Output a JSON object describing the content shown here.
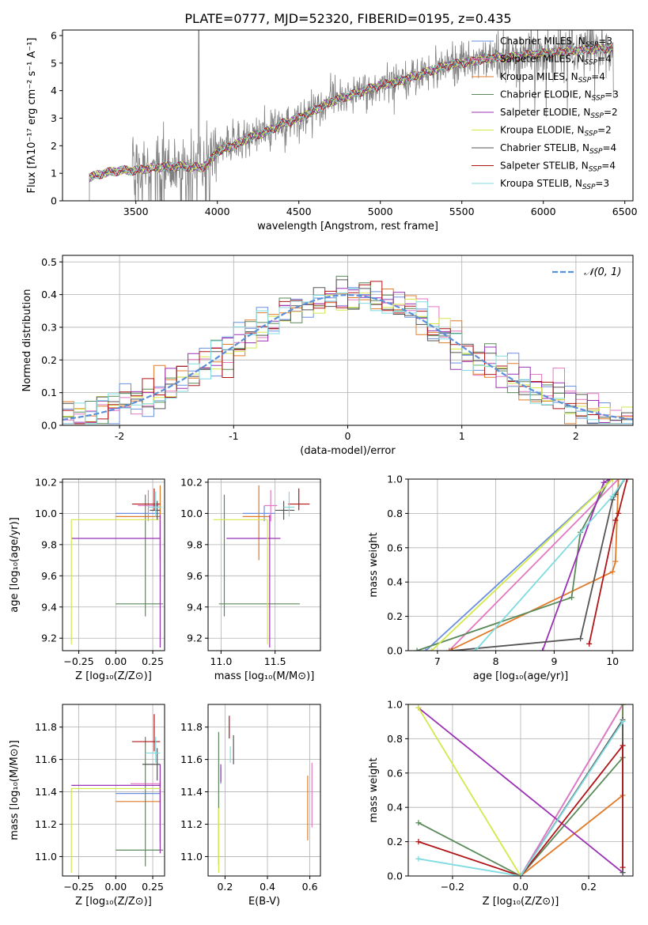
{
  "figure_title": "PLATE=0777, MJD=52320, FIBERID=0195, z=0.435",
  "colors": {
    "Chabrier MILES": "#6a8fe0",
    "Salpeter MILES": "#e377c2",
    "Kroupa MILES": "#e07b2a",
    "Chabrier ELODIE": "#5a8a5a",
    "Salpeter ELODIE": "#9b30b5",
    "Kroupa ELODIE": "#d4e84a",
    "Chabrier STELIB": "#555555",
    "Salpeter STELIB": "#b01518",
    "Kroupa STELIB": "#7fdbe0",
    "data": "#808080",
    "normal": "#5b8fd8"
  },
  "chart_data": [
    {
      "id": "spectrum",
      "type": "line",
      "title": "PLATE=0777, MJD=52320, FIBERID=0195, z=0.435",
      "xlabel": "wavelength [Angstrom, rest frame]",
      "ylabel": "Flux [fλ10⁻¹⁷ erg cm⁻² s⁻¹ A⁻¹]",
      "xlim": [
        3050,
        6550
      ],
      "ylim": [
        0,
        6.2
      ],
      "xticks": [
        3500,
        4000,
        4500,
        5000,
        5500,
        6000,
        6500
      ],
      "yticks": [
        0,
        1,
        2,
        3,
        4,
        5,
        6
      ],
      "legend_position": "top-right",
      "legend": [
        {
          "label": "Chabrier MILES, N",
          "sub": "SSP",
          "eq": "=3",
          "model": "Chabrier MILES"
        },
        {
          "label": "Salpeter MILES, N",
          "sub": "SSP",
          "eq": "=4",
          "model": "Salpeter MILES"
        },
        {
          "label": "Kroupa MILES, N",
          "sub": "SSP",
          "eq": "=4",
          "model": "Kroupa MILES"
        },
        {
          "label": "Chabrier ELODIE, N",
          "sub": "SSP",
          "eq": "=3",
          "model": "Chabrier ELODIE"
        },
        {
          "label": "Salpeter ELODIE, N",
          "sub": "SSP",
          "eq": "=2",
          "model": "Salpeter ELODIE"
        },
        {
          "label": "Kroupa ELODIE, N",
          "sub": "SSP",
          "eq": "=2",
          "model": "Kroupa ELODIE"
        },
        {
          "label": "Chabrier STELIB, N",
          "sub": "SSP",
          "eq": "=4",
          "model": "Chabrier STELIB"
        },
        {
          "label": "Salpeter STELIB, N",
          "sub": "SSP",
          "eq": "=4",
          "model": "Salpeter STELIB"
        },
        {
          "label": "Kroupa STELIB, N",
          "sub": "SSP",
          "eq": "=3",
          "model": "Kroupa STELIB"
        }
      ],
      "continuum": [
        [
          3215,
          0.85
        ],
        [
          3300,
          1.0
        ],
        [
          3400,
          1.1
        ],
        [
          3500,
          1.1
        ],
        [
          3600,
          1.2
        ],
        [
          3700,
          1.25
        ],
        [
          3800,
          1.25
        ],
        [
          3900,
          1.2
        ],
        [
          3950,
          1.4
        ],
        [
          4000,
          1.8
        ],
        [
          4100,
          2.0
        ],
        [
          4200,
          2.3
        ],
        [
          4300,
          2.5
        ],
        [
          4400,
          2.8
        ],
        [
          4500,
          3.0
        ],
        [
          4600,
          3.3
        ],
        [
          4700,
          3.6
        ],
        [
          4800,
          3.8
        ],
        [
          4900,
          4.0
        ],
        [
          5000,
          4.2
        ],
        [
          5100,
          4.3
        ],
        [
          5200,
          4.5
        ],
        [
          5300,
          4.7
        ],
        [
          5400,
          4.9
        ],
        [
          5500,
          5.0
        ],
        [
          5600,
          5.1
        ],
        [
          5700,
          5.2
        ],
        [
          5800,
          5.2
        ],
        [
          5900,
          5.3
        ],
        [
          6000,
          5.35
        ],
        [
          6100,
          5.4
        ],
        [
          6200,
          5.45
        ],
        [
          6300,
          5.5
        ],
        [
          6430,
          5.55
        ]
      ],
      "data_range": [
        3215,
        6430
      ],
      "model_range": [
        3215,
        6430
      ]
    },
    {
      "id": "residual-histogram",
      "type": "line",
      "xlabel": "(data-model)/error",
      "ylabel": "Normed distribution",
      "xlim": [
        -2.5,
        2.5
      ],
      "ylim": [
        0,
        0.52
      ],
      "xticks": [
        -2,
        -1,
        0,
        1,
        2
      ],
      "yticks": [
        0.0,
        0.1,
        0.2,
        0.3,
        0.4,
        0.5
      ],
      "legend_position": "top-right",
      "legend": [
        {
          "label": "𝒩(0, 1)",
          "model": "normal"
        }
      ],
      "bin_width": 0.1
    },
    {
      "id": "age-vs-Z",
      "type": "scatter",
      "xlabel": "Z [log₁₀(Z/Z⊙)]",
      "ylabel": "age  [log₁₀(age/yr)]",
      "xlim": [
        -0.36,
        0.33
      ],
      "ylim": [
        9.12,
        10.22
      ],
      "xticks": [
        -0.25,
        0.0,
        0.25
      ],
      "xticklabels": [
        "−0.25",
        "0.00",
        "0.25"
      ],
      "yticks": [
        9.2,
        9.4,
        9.6,
        9.8,
        10.0,
        10.2
      ],
      "points": [
        {
          "model": "Chabrier MILES",
          "x": 0.3,
          "y": 10.0,
          "xerr": [
            0.3,
            0.0
          ],
          "yerr": [
            0.05,
            0.05
          ]
        },
        {
          "model": "Salpeter MILES",
          "x": 0.22,
          "y": 10.05,
          "xerr": [
            0.07,
            0.07
          ],
          "yerr": [
            0.1,
            0.1
          ]
        },
        {
          "model": "Kroupa MILES",
          "x": 0.3,
          "y": 9.98,
          "xerr": [
            0.3,
            0.0
          ],
          "yerr": [
            0.28,
            0.2
          ]
        },
        {
          "model": "Chabrier ELODIE",
          "x": 0.2,
          "y": 9.42,
          "xerr": [
            0.2,
            0.12
          ],
          "yerr": [
            0.08,
            0.7
          ]
        },
        {
          "model": "Salpeter ELODIE",
          "x": 0.3,
          "y": 9.84,
          "xerr": [
            0.6,
            0.0
          ],
          "yerr": [
            0.7,
            0.15
          ]
        },
        {
          "model": "Kroupa ELODIE",
          "x": -0.3,
          "y": 9.96,
          "xerr": [
            0.0,
            0.6
          ],
          "yerr": [
            0.8,
            0.0
          ]
        },
        {
          "model": "Chabrier STELIB",
          "x": 0.28,
          "y": 10.02,
          "xerr": [
            0.05,
            0.02
          ],
          "yerr": [
            0.06,
            0.06
          ]
        },
        {
          "model": "Salpeter STELIB",
          "x": 0.26,
          "y": 10.06,
          "xerr": [
            0.15,
            0.04
          ],
          "yerr": [
            0.04,
            0.1
          ]
        },
        {
          "model": "Kroupa STELIB",
          "x": 0.27,
          "y": 10.04,
          "xerr": [
            0.05,
            0.04
          ],
          "yerr": [
            0.06,
            0.1
          ]
        }
      ]
    },
    {
      "id": "age-vs-mass",
      "type": "scatter",
      "xlabel": "mass [log₁₀(M/M⊙)]",
      "xlim": [
        10.88,
        11.92
      ],
      "ylim": [
        9.12,
        10.22
      ],
      "xticks": [
        11.0,
        11.5
      ],
      "xticklabels": [
        "11.0",
        "11.5"
      ],
      "yticks": [
        9.2,
        9.4,
        9.6,
        9.8,
        10.0,
        10.2
      ],
      "points": [
        {
          "model": "Chabrier MILES",
          "x": 11.4,
          "y": 10.0,
          "xerr": [
            0.2,
            0.1
          ],
          "yerr": [
            0.05,
            0.05
          ]
        },
        {
          "model": "Salpeter MILES",
          "x": 11.46,
          "y": 10.05,
          "xerr": [
            0.06,
            0.06
          ],
          "yerr": [
            0.1,
            0.1
          ]
        },
        {
          "model": "Kroupa MILES",
          "x": 11.35,
          "y": 9.98,
          "xerr": [
            0.15,
            0.1
          ],
          "yerr": [
            0.28,
            0.2
          ]
        },
        {
          "model": "Chabrier ELODIE",
          "x": 11.03,
          "y": 9.42,
          "xerr": [
            0.05,
            0.7
          ],
          "yerr": [
            0.08,
            0.7
          ]
        },
        {
          "model": "Salpeter ELODIE",
          "x": 11.45,
          "y": 9.84,
          "xerr": [
            0.4,
            0.1
          ],
          "yerr": [
            0.7,
            0.15
          ]
        },
        {
          "model": "Kroupa ELODIE",
          "x": 11.43,
          "y": 9.96,
          "xerr": [
            0.5,
            0.0
          ],
          "yerr": [
            0.8,
            0.0
          ]
        },
        {
          "model": "Chabrier STELIB",
          "x": 11.58,
          "y": 10.02,
          "xerr": [
            0.08,
            0.1
          ],
          "yerr": [
            0.06,
            0.06
          ]
        },
        {
          "model": "Salpeter STELIB",
          "x": 11.72,
          "y": 10.06,
          "xerr": [
            0.1,
            0.1
          ],
          "yerr": [
            0.04,
            0.1
          ]
        },
        {
          "model": "Kroupa STELIB",
          "x": 11.63,
          "y": 10.04,
          "xerr": [
            0.05,
            0.05
          ],
          "yerr": [
            0.06,
            0.1
          ]
        }
      ]
    },
    {
      "id": "cumulative-mass-weight-age",
      "type": "line",
      "xlabel": "age  [log₁₀(age/yr)]",
      "ylabel": "mass weight",
      "xlim": [
        6.5,
        10.35
      ],
      "ylim": [
        0,
        1
      ],
      "xticks": [
        7,
        8,
        9,
        10
      ],
      "yticks": [
        0.0,
        0.2,
        0.4,
        0.6,
        0.8,
        1.0
      ],
      "series": [
        {
          "model": "Chabrier MILES",
          "x": [
            6.8,
            10.0
          ],
          "y": [
            0.0,
            1.0
          ]
        },
        {
          "model": "Salpeter MILES",
          "x": [
            7.2,
            10.1
          ],
          "y": [
            0.0,
            1.0
          ]
        },
        {
          "model": "Kroupa MILES",
          "x": [
            7.2,
            10.0,
            10.05,
            10.1
          ],
          "y": [
            0.0,
            0.46,
            0.52,
            1.0
          ]
        },
        {
          "model": "Chabrier ELODIE",
          "x": [
            6.65,
            9.3,
            9.45,
            9.95
          ],
          "y": [
            0.0,
            0.31,
            0.69,
            1.0
          ]
        },
        {
          "model": "Salpeter ELODIE",
          "x": [
            8.8,
            9.85,
            9.95
          ],
          "y": [
            0.0,
            0.98,
            1.0
          ]
        },
        {
          "model": "Kroupa ELODIE",
          "x": [
            6.9,
            10.0
          ],
          "y": [
            0.0,
            1.0
          ]
        },
        {
          "model": "Chabrier STELIB",
          "x": [
            7.25,
            9.45,
            10.0,
            10.05,
            10.2
          ],
          "y": [
            0.0,
            0.07,
            0.88,
            0.91,
            1.0
          ]
        },
        {
          "model": "Salpeter STELIB",
          "x": [
            9.6,
            10.05,
            10.1,
            10.25
          ],
          "y": [
            0.04,
            0.76,
            0.8,
            1.0
          ]
        },
        {
          "model": "Kroupa STELIB",
          "x": [
            7.65,
            10.0,
            10.2
          ],
          "y": [
            0.0,
            0.9,
            1.0
          ]
        }
      ]
    },
    {
      "id": "mass-vs-Z",
      "type": "scatter",
      "xlabel": "Z [log₁₀(Z/Z⊙)]",
      "ylabel": "mass [log₁₀(M/M⊙)]",
      "xlim": [
        -0.36,
        0.33
      ],
      "ylim": [
        10.88,
        11.94
      ],
      "xticks": [
        -0.25,
        0.0,
        0.25
      ],
      "xticklabels": [
        "−0.25",
        "0.00",
        "0.25"
      ],
      "yticks": [
        11.0,
        11.2,
        11.4,
        11.6,
        11.8
      ],
      "points": [
        {
          "model": "Chabrier MILES",
          "x": 0.3,
          "y": 11.39,
          "xerr": [
            0.3,
            0.0
          ],
          "yerr": [
            0.06,
            0.06
          ]
        },
        {
          "model": "Salpeter MILES",
          "x": 0.3,
          "y": 11.45,
          "xerr": [
            0.2,
            0.0
          ],
          "yerr": [
            0.03,
            0.03
          ]
        },
        {
          "model": "Kroupa MILES",
          "x": 0.3,
          "y": 11.34,
          "xerr": [
            0.3,
            0.0
          ],
          "yerr": [
            0.25,
            0.1
          ]
        },
        {
          "model": "Chabrier ELODIE",
          "x": 0.2,
          "y": 11.04,
          "xerr": [
            0.2,
            0.12
          ],
          "yerr": [
            0.1,
            0.7
          ]
        },
        {
          "model": "Salpeter ELODIE",
          "x": 0.3,
          "y": 11.44,
          "xerr": [
            0.6,
            0.0
          ],
          "yerr": [
            0.42,
            0.13
          ]
        },
        {
          "model": "Kroupa ELODIE",
          "x": -0.3,
          "y": 11.42,
          "xerr": [
            0.0,
            0.6
          ],
          "yerr": [
            0.52,
            0.0
          ]
        },
        {
          "model": "Chabrier STELIB",
          "x": 0.28,
          "y": 11.57,
          "xerr": [
            0.1,
            0.02
          ],
          "yerr": [
            0.1,
            0.1
          ]
        },
        {
          "model": "Salpeter STELIB",
          "x": 0.26,
          "y": 11.71,
          "xerr": [
            0.15,
            0.04
          ],
          "yerr": [
            0.06,
            0.17
          ]
        },
        {
          "model": "Kroupa STELIB",
          "x": 0.27,
          "y": 11.64,
          "xerr": [
            0.07,
            0.03
          ],
          "yerr": [
            0.06,
            0.1
          ]
        }
      ]
    },
    {
      "id": "mass-vs-ebv",
      "type": "scatter",
      "xlabel": "E(B-V)",
      "xlim": [
        0.12,
        0.65
      ],
      "ylim": [
        10.88,
        11.94
      ],
      "xticks": [
        0.2,
        0.4,
        0.6
      ],
      "xticklabels": [
        "0.2",
        "0.4",
        "0.6"
      ],
      "yticks": [
        11.0,
        11.2,
        11.4,
        11.6,
        11.8
      ],
      "points": [
        {
          "model": "Chabrier MILES",
          "x": 0.18,
          "y": 11.5,
          "yerr": [
            0.05,
            0.05
          ]
        },
        {
          "model": "Salpeter MILES",
          "x": 0.61,
          "y": 11.38,
          "yerr": [
            0.2,
            0.2
          ]
        },
        {
          "model": "Kroupa MILES",
          "x": 0.59,
          "y": 11.3,
          "yerr": [
            0.2,
            0.2
          ]
        },
        {
          "model": "Chabrier ELODIE",
          "x": 0.17,
          "y": 11.35,
          "yerr": [
            0.4,
            0.42
          ]
        },
        {
          "model": "Salpeter ELODIE",
          "x": 0.18,
          "y": 11.5,
          "yerr": [
            0.04,
            0.07
          ]
        },
        {
          "model": "Kroupa ELODIE",
          "x": 0.17,
          "y": 11.1,
          "yerr": [
            0.2,
            0.2
          ]
        },
        {
          "model": "Chabrier STELIB",
          "x": 0.24,
          "y": 11.65,
          "yerr": [
            0.08,
            0.1
          ]
        },
        {
          "model": "Salpeter STELIB",
          "x": 0.22,
          "y": 11.79,
          "yerr": [
            0.06,
            0.08
          ]
        },
        {
          "model": "Kroupa STELIB",
          "x": 0.225,
          "y": 11.63,
          "yerr": [
            0.05,
            0.05
          ]
        }
      ]
    },
    {
      "id": "cumulative-mass-weight-Z",
      "type": "line",
      "xlabel": "Z [log₁₀(Z/Z⊙)]",
      "ylabel": "mass weight",
      "xlim": [
        -0.33,
        0.33
      ],
      "ylim": [
        0,
        1
      ],
      "xticks": [
        -0.2,
        0.0,
        0.2
      ],
      "xticklabels": [
        "−0.2",
        "0.0",
        "0.2"
      ],
      "yticks": [
        0.0,
        0.2,
        0.4,
        0.6,
        0.8,
        1.0
      ],
      "series": [
        {
          "model": "Chabrier MILES",
          "x": [
            0.0,
            0.3
          ],
          "y": [
            0.0,
            1.0
          ]
        },
        {
          "model": "Salpeter MILES",
          "x": [
            0.0,
            0.3
          ],
          "y": [
            0.0,
            1.0
          ]
        },
        {
          "model": "Kroupa MILES",
          "x": [
            0.0,
            0.3,
            0.3
          ],
          "y": [
            0.0,
            0.47,
            1.0
          ]
        },
        {
          "model": "Chabrier ELODIE",
          "x": [
            -0.3,
            0.0,
            0.3,
            0.3
          ],
          "y": [
            0.31,
            0.0,
            0.69,
            1.0
          ]
        },
        {
          "model": "Salpeter ELODIE",
          "x": [
            -0.3,
            0.3
          ],
          "y": [
            0.98,
            0.02
          ]
        },
        {
          "model": "Kroupa ELODIE",
          "x": [
            -0.3,
            0.0
          ],
          "y": [
            0.98,
            0.0
          ]
        },
        {
          "model": "Chabrier STELIB",
          "x": [
            0.0,
            0.3,
            0.3
          ],
          "y": [
            0.0,
            0.91,
            0.02
          ]
        },
        {
          "model": "Salpeter STELIB",
          "x": [
            -0.3,
            0.0,
            0.3,
            0.3
          ],
          "y": [
            0.2,
            0.0,
            0.76,
            0.05
          ]
        },
        {
          "model": "Kroupa STELIB",
          "x": [
            -0.3,
            0.0,
            0.3
          ],
          "y": [
            0.1,
            0.0,
            0.9
          ]
        }
      ]
    }
  ]
}
